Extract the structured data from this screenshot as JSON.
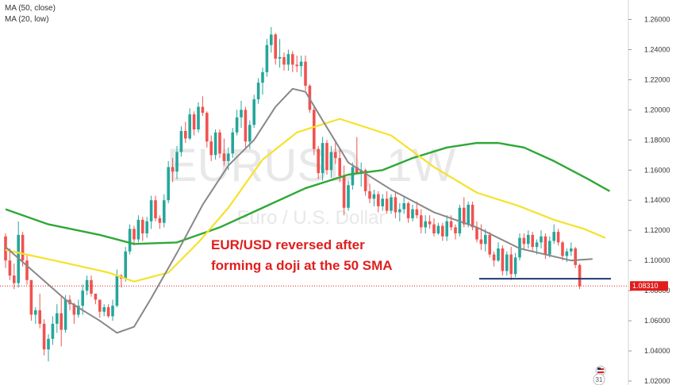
{
  "legend": {
    "ma50": "MA (50, close)",
    "ma20": "MA (20, low)"
  },
  "watermark": {
    "symbol": "EURUSD, 1W",
    "name": "Euro / U.S. Dollar"
  },
  "annotation": {
    "line1": "EUR/USD reversed after",
    "line2": "forming a doji at the 50 SMA"
  },
  "price_tag": "1.08310",
  "colors": {
    "up": "#26a69a",
    "down": "#ef5350",
    "ma50": "#f5e22b",
    "ma20": "#888888",
    "ma100": "#2ea836",
    "support": "#1f3b73",
    "current": "#e11d1d"
  },
  "chart_data": {
    "type": "candlestick",
    "ylim": [
      1.02,
      1.265
    ],
    "yticks": [
      "1.26000",
      "1.24000",
      "1.22000",
      "1.20000",
      "1.18000",
      "1.16000",
      "1.14000",
      "1.12000",
      "1.10000",
      "1.08000",
      "1.06000",
      "1.04000",
      "1.02000"
    ],
    "ytick_values": [
      1.26,
      1.24,
      1.22,
      1.2,
      1.18,
      1.16,
      1.14,
      1.12,
      1.1,
      1.08,
      1.06,
      1.04,
      1.02
    ],
    "last_price": 1.0831,
    "support_level": 1.0879,
    "candles": [
      [
        1.116,
        1.118,
        1.095,
        1.1
      ],
      [
        1.1,
        1.108,
        1.087,
        1.09
      ],
      [
        1.09,
        1.098,
        1.081,
        1.085
      ],
      [
        1.085,
        1.126,
        1.082,
        1.117
      ],
      [
        1.117,
        1.119,
        1.096,
        1.1
      ],
      [
        1.1,
        1.104,
        1.084,
        1.087
      ],
      [
        1.087,
        1.087,
        1.06,
        1.064
      ],
      [
        1.064,
        1.069,
        1.058,
        1.067
      ],
      [
        1.067,
        1.078,
        1.055,
        1.058
      ],
      [
        1.058,
        1.061,
        1.037,
        1.041
      ],
      [
        1.041,
        1.051,
        1.033,
        1.048
      ],
      [
        1.048,
        1.063,
        1.044,
        1.058
      ],
      [
        1.058,
        1.071,
        1.052,
        1.065
      ],
      [
        1.065,
        1.076,
        1.043,
        1.054
      ],
      [
        1.054,
        1.077,
        1.052,
        1.074
      ],
      [
        1.074,
        1.077,
        1.067,
        1.071
      ],
      [
        1.071,
        1.072,
        1.058,
        1.064
      ],
      [
        1.064,
        1.074,
        1.062,
        1.07
      ],
      [
        1.07,
        1.084,
        1.064,
        1.08
      ],
      [
        1.08,
        1.09,
        1.077,
        1.087
      ],
      [
        1.087,
        1.09,
        1.076,
        1.078
      ],
      [
        1.078,
        1.078,
        1.071,
        1.074
      ],
      [
        1.074,
        1.074,
        1.062,
        1.066
      ],
      [
        1.066,
        1.071,
        1.063,
        1.069
      ],
      [
        1.069,
        1.071,
        1.062,
        1.063
      ],
      [
        1.063,
        1.074,
        1.06,
        1.07
      ],
      [
        1.07,
        1.094,
        1.069,
        1.09
      ],
      [
        1.09,
        1.091,
        1.082,
        1.088
      ],
      [
        1.088,
        1.109,
        1.086,
        1.106
      ],
      [
        1.106,
        1.124,
        1.104,
        1.121
      ],
      [
        1.121,
        1.123,
        1.11,
        1.114
      ],
      [
        1.114,
        1.13,
        1.112,
        1.127
      ],
      [
        1.127,
        1.129,
        1.113,
        1.118
      ],
      [
        1.118,
        1.129,
        1.115,
        1.126
      ],
      [
        1.126,
        1.143,
        1.121,
        1.14
      ],
      [
        1.14,
        1.143,
        1.126,
        1.128
      ],
      [
        1.128,
        1.13,
        1.121,
        1.125
      ],
      [
        1.125,
        1.144,
        1.122,
        1.14
      ],
      [
        1.14,
        1.166,
        1.138,
        1.162
      ],
      [
        1.162,
        1.168,
        1.152,
        1.159
      ],
      [
        1.159,
        1.176,
        1.154,
        1.172
      ],
      [
        1.172,
        1.189,
        1.169,
        1.186
      ],
      [
        1.186,
        1.192,
        1.178,
        1.181
      ],
      [
        1.181,
        1.201,
        1.18,
        1.197
      ],
      [
        1.197,
        1.199,
        1.183,
        1.187
      ],
      [
        1.187,
        1.205,
        1.185,
        1.202
      ],
      [
        1.202,
        1.209,
        1.196,
        1.198
      ],
      [
        1.198,
        1.199,
        1.175,
        1.179
      ],
      [
        1.179,
        1.183,
        1.166,
        1.17
      ],
      [
        1.17,
        1.187,
        1.167,
        1.185
      ],
      [
        1.185,
        1.187,
        1.168,
        1.171
      ],
      [
        1.171,
        1.181,
        1.163,
        1.166
      ],
      [
        1.166,
        1.175,
        1.16,
        1.171
      ],
      [
        1.171,
        1.188,
        1.168,
        1.185
      ],
      [
        1.185,
        1.2,
        1.183,
        1.195
      ],
      [
        1.195,
        1.206,
        1.188,
        1.2
      ],
      [
        1.2,
        1.202,
        1.175,
        1.179
      ],
      [
        1.179,
        1.193,
        1.174,
        1.19
      ],
      [
        1.19,
        1.21,
        1.188,
        1.207
      ],
      [
        1.207,
        1.221,
        1.204,
        1.218
      ],
      [
        1.218,
        1.228,
        1.21,
        1.225
      ],
      [
        1.225,
        1.247,
        1.222,
        1.243
      ],
      [
        1.243,
        1.255,
        1.238,
        1.25
      ],
      [
        1.25,
        1.251,
        1.23,
        1.234
      ],
      [
        1.234,
        1.247,
        1.228,
        1.235
      ],
      [
        1.235,
        1.238,
        1.226,
        1.23
      ],
      [
        1.23,
        1.24,
        1.226,
        1.237
      ],
      [
        1.237,
        1.239,
        1.225,
        1.23
      ],
      [
        1.23,
        1.236,
        1.225,
        1.229
      ],
      [
        1.229,
        1.236,
        1.222,
        1.232
      ],
      [
        1.232,
        1.236,
        1.213,
        1.216
      ],
      [
        1.216,
        1.217,
        1.198,
        1.2
      ],
      [
        1.2,
        1.203,
        1.17,
        1.174
      ],
      [
        1.174,
        1.176,
        1.154,
        1.158
      ],
      [
        1.158,
        1.182,
        1.153,
        1.178
      ],
      [
        1.178,
        1.18,
        1.157,
        1.16
      ],
      [
        1.16,
        1.176,
        1.155,
        1.172
      ],
      [
        1.172,
        1.18,
        1.164,
        1.168
      ],
      [
        1.168,
        1.175,
        1.152,
        1.156
      ],
      [
        1.156,
        1.163,
        1.13,
        1.135
      ],
      [
        1.135,
        1.153,
        1.133,
        1.15
      ],
      [
        1.15,
        1.165,
        1.147,
        1.162
      ],
      [
        1.162,
        1.182,
        1.159,
        1.158
      ],
      [
        1.158,
        1.165,
        1.149,
        1.16
      ],
      [
        1.16,
        1.161,
        1.143,
        1.146
      ],
      [
        1.146,
        1.151,
        1.138,
        1.141
      ],
      [
        1.141,
        1.147,
        1.136,
        1.144
      ],
      [
        1.144,
        1.146,
        1.132,
        1.136
      ],
      [
        1.136,
        1.144,
        1.133,
        1.141
      ],
      [
        1.141,
        1.146,
        1.131,
        1.133
      ],
      [
        1.133,
        1.144,
        1.131,
        1.142
      ],
      [
        1.142,
        1.145,
        1.128,
        1.132
      ],
      [
        1.132,
        1.138,
        1.126,
        1.134
      ],
      [
        1.134,
        1.143,
        1.131,
        1.138
      ],
      [
        1.138,
        1.139,
        1.125,
        1.128
      ],
      [
        1.128,
        1.137,
        1.126,
        1.134
      ],
      [
        1.134,
        1.139,
        1.128,
        1.13
      ],
      [
        1.13,
        1.134,
        1.118,
        1.122
      ],
      [
        1.122,
        1.13,
        1.118,
        1.126
      ],
      [
        1.126,
        1.13,
        1.121,
        1.124
      ],
      [
        1.124,
        1.128,
        1.116,
        1.118
      ],
      [
        1.118,
        1.125,
        1.117,
        1.123
      ],
      [
        1.123,
        1.125,
        1.113,
        1.116
      ],
      [
        1.116,
        1.13,
        1.113,
        1.126
      ],
      [
        1.126,
        1.13,
        1.12,
        1.122
      ],
      [
        1.122,
        1.124,
        1.114,
        1.118
      ],
      [
        1.118,
        1.137,
        1.116,
        1.135
      ],
      [
        1.135,
        1.142,
        1.122,
        1.124
      ],
      [
        1.124,
        1.139,
        1.122,
        1.137
      ],
      [
        1.137,
        1.139,
        1.12,
        1.122
      ],
      [
        1.122,
        1.126,
        1.112,
        1.114
      ],
      [
        1.114,
        1.124,
        1.107,
        1.111
      ],
      [
        1.111,
        1.121,
        1.106,
        1.117
      ],
      [
        1.117,
        1.119,
        1.102,
        1.104
      ],
      [
        1.104,
        1.106,
        1.096,
        1.1
      ],
      [
        1.1,
        1.112,
        1.099,
        1.108
      ],
      [
        1.108,
        1.11,
        1.09,
        1.093
      ],
      [
        1.093,
        1.106,
        1.09,
        1.104
      ],
      [
        1.104,
        1.109,
        1.087,
        1.091
      ],
      [
        1.091,
        1.105,
        1.089,
        1.102
      ],
      [
        1.102,
        1.118,
        1.1,
        1.115
      ],
      [
        1.115,
        1.118,
        1.107,
        1.111
      ],
      [
        1.111,
        1.12,
        1.108,
        1.117
      ],
      [
        1.117,
        1.119,
        1.106,
        1.109
      ],
      [
        1.109,
        1.114,
        1.104,
        1.112
      ],
      [
        1.112,
        1.12,
        1.108,
        1.116
      ],
      [
        1.116,
        1.118,
        1.101,
        1.104
      ],
      [
        1.104,
        1.116,
        1.102,
        1.113
      ],
      [
        1.113,
        1.124,
        1.111,
        1.119
      ],
      [
        1.119,
        1.121,
        1.11,
        1.112
      ],
      [
        1.112,
        1.113,
        1.1,
        1.103
      ],
      [
        1.103,
        1.108,
        1.099,
        1.106
      ],
      [
        1.106,
        1.112,
        1.103,
        1.108
      ],
      [
        1.108,
        1.109,
        1.095,
        1.097
      ],
      [
        1.097,
        1.098,
        1.081,
        1.083
      ]
    ],
    "ma50": [
      [
        0,
        1.107
      ],
      [
        13,
        1.099
      ],
      [
        24,
        1.092
      ],
      [
        30,
        1.086
      ],
      [
        38,
        1.092
      ],
      [
        45,
        1.112
      ],
      [
        52,
        1.135
      ],
      [
        60,
        1.167
      ],
      [
        68,
        1.185
      ],
      [
        78,
        1.194
      ],
      [
        90,
        1.183
      ],
      [
        100,
        1.162
      ],
      [
        110,
        1.145
      ],
      [
        120,
        1.136
      ],
      [
        128,
        1.127
      ],
      [
        135,
        1.121
      ],
      [
        140,
        1.115
      ]
    ],
    "ma20": [
      [
        0,
        1.109
      ],
      [
        8,
        1.089
      ],
      [
        14,
        1.074
      ],
      [
        22,
        1.06
      ],
      [
        26,
        1.052
      ],
      [
        30,
        1.056
      ],
      [
        34,
        1.075
      ],
      [
        40,
        1.105
      ],
      [
        46,
        1.137
      ],
      [
        52,
        1.163
      ],
      [
        58,
        1.18
      ],
      [
        63,
        1.202
      ],
      [
        67,
        1.214
      ],
      [
        70,
        1.212
      ],
      [
        74,
        1.193
      ],
      [
        80,
        1.165
      ],
      [
        90,
        1.147
      ],
      [
        100,
        1.132
      ],
      [
        110,
        1.122
      ],
      [
        120,
        1.108
      ],
      [
        126,
        1.104
      ],
      [
        132,
        1.1
      ],
      [
        137,
        1.101
      ]
    ],
    "ma100": [
      [
        0,
        1.134
      ],
      [
        10,
        1.124
      ],
      [
        22,
        1.117
      ],
      [
        30,
        1.111
      ],
      [
        40,
        1.112
      ],
      [
        50,
        1.122
      ],
      [
        60,
        1.135
      ],
      [
        70,
        1.148
      ],
      [
        80,
        1.157
      ],
      [
        88,
        1.16
      ],
      [
        95,
        1.168
      ],
      [
        103,
        1.175
      ],
      [
        110,
        1.178
      ],
      [
        115,
        1.178
      ],
      [
        121,
        1.175
      ],
      [
        128,
        1.166
      ],
      [
        136,
        1.154
      ],
      [
        141,
        1.146
      ]
    ]
  }
}
